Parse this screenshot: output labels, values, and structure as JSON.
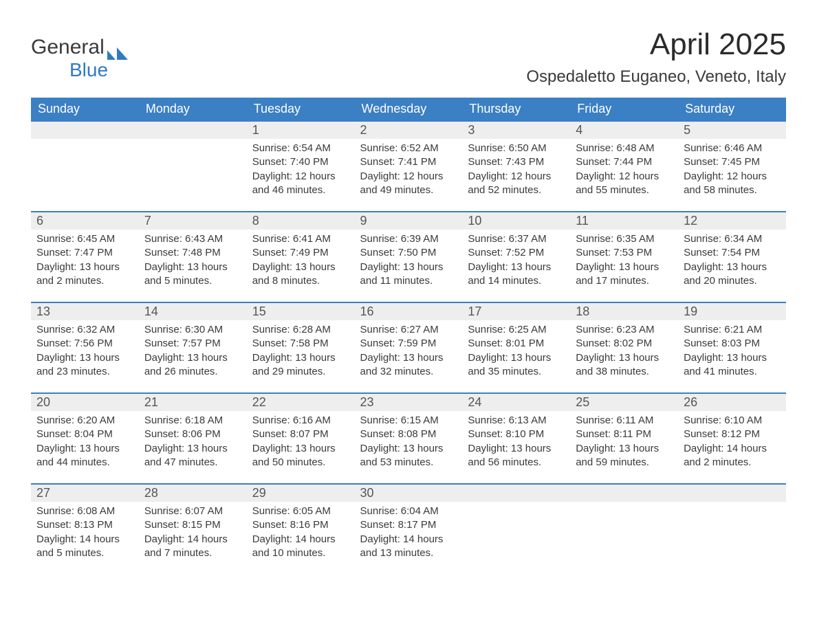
{
  "brand": {
    "name_part1": "General",
    "name_part2": "Blue"
  },
  "title": "April 2025",
  "location": "Ospedaletto Euganeo, Veneto, Italy",
  "colors": {
    "header_bg": "#3b7fc4",
    "header_text": "#ffffff",
    "daybar_bg": "#eeeeee",
    "daybar_text": "#555555",
    "body_text": "#3a3a3a",
    "row_border": "#3b7fc4",
    "logo_accent": "#2f7bc2"
  },
  "typography": {
    "title_fontsize": 44,
    "location_fontsize": 24,
    "header_fontsize": 18,
    "daynum_fontsize": 18,
    "cell_fontsize": 15
  },
  "columns": [
    "Sunday",
    "Monday",
    "Tuesday",
    "Wednesday",
    "Thursday",
    "Friday",
    "Saturday"
  ],
  "weeks": [
    [
      {
        "day": "",
        "sunrise": "",
        "sunset": "",
        "daylight1": "",
        "daylight2": "",
        "empty": true
      },
      {
        "day": "",
        "sunrise": "",
        "sunset": "",
        "daylight1": "",
        "daylight2": "",
        "empty": true
      },
      {
        "day": "1",
        "sunrise": "Sunrise: 6:54 AM",
        "sunset": "Sunset: 7:40 PM",
        "daylight1": "Daylight: 12 hours",
        "daylight2": "and 46 minutes."
      },
      {
        "day": "2",
        "sunrise": "Sunrise: 6:52 AM",
        "sunset": "Sunset: 7:41 PM",
        "daylight1": "Daylight: 12 hours",
        "daylight2": "and 49 minutes."
      },
      {
        "day": "3",
        "sunrise": "Sunrise: 6:50 AM",
        "sunset": "Sunset: 7:43 PM",
        "daylight1": "Daylight: 12 hours",
        "daylight2": "and 52 minutes."
      },
      {
        "day": "4",
        "sunrise": "Sunrise: 6:48 AM",
        "sunset": "Sunset: 7:44 PM",
        "daylight1": "Daylight: 12 hours",
        "daylight2": "and 55 minutes."
      },
      {
        "day": "5",
        "sunrise": "Sunrise: 6:46 AM",
        "sunset": "Sunset: 7:45 PM",
        "daylight1": "Daylight: 12 hours",
        "daylight2": "and 58 minutes."
      }
    ],
    [
      {
        "day": "6",
        "sunrise": "Sunrise: 6:45 AM",
        "sunset": "Sunset: 7:47 PM",
        "daylight1": "Daylight: 13 hours",
        "daylight2": "and 2 minutes."
      },
      {
        "day": "7",
        "sunrise": "Sunrise: 6:43 AM",
        "sunset": "Sunset: 7:48 PM",
        "daylight1": "Daylight: 13 hours",
        "daylight2": "and 5 minutes."
      },
      {
        "day": "8",
        "sunrise": "Sunrise: 6:41 AM",
        "sunset": "Sunset: 7:49 PM",
        "daylight1": "Daylight: 13 hours",
        "daylight2": "and 8 minutes."
      },
      {
        "day": "9",
        "sunrise": "Sunrise: 6:39 AM",
        "sunset": "Sunset: 7:50 PM",
        "daylight1": "Daylight: 13 hours",
        "daylight2": "and 11 minutes."
      },
      {
        "day": "10",
        "sunrise": "Sunrise: 6:37 AM",
        "sunset": "Sunset: 7:52 PM",
        "daylight1": "Daylight: 13 hours",
        "daylight2": "and 14 minutes."
      },
      {
        "day": "11",
        "sunrise": "Sunrise: 6:35 AM",
        "sunset": "Sunset: 7:53 PM",
        "daylight1": "Daylight: 13 hours",
        "daylight2": "and 17 minutes."
      },
      {
        "day": "12",
        "sunrise": "Sunrise: 6:34 AM",
        "sunset": "Sunset: 7:54 PM",
        "daylight1": "Daylight: 13 hours",
        "daylight2": "and 20 minutes."
      }
    ],
    [
      {
        "day": "13",
        "sunrise": "Sunrise: 6:32 AM",
        "sunset": "Sunset: 7:56 PM",
        "daylight1": "Daylight: 13 hours",
        "daylight2": "and 23 minutes."
      },
      {
        "day": "14",
        "sunrise": "Sunrise: 6:30 AM",
        "sunset": "Sunset: 7:57 PM",
        "daylight1": "Daylight: 13 hours",
        "daylight2": "and 26 minutes."
      },
      {
        "day": "15",
        "sunrise": "Sunrise: 6:28 AM",
        "sunset": "Sunset: 7:58 PM",
        "daylight1": "Daylight: 13 hours",
        "daylight2": "and 29 minutes."
      },
      {
        "day": "16",
        "sunrise": "Sunrise: 6:27 AM",
        "sunset": "Sunset: 7:59 PM",
        "daylight1": "Daylight: 13 hours",
        "daylight2": "and 32 minutes."
      },
      {
        "day": "17",
        "sunrise": "Sunrise: 6:25 AM",
        "sunset": "Sunset: 8:01 PM",
        "daylight1": "Daylight: 13 hours",
        "daylight2": "and 35 minutes."
      },
      {
        "day": "18",
        "sunrise": "Sunrise: 6:23 AM",
        "sunset": "Sunset: 8:02 PM",
        "daylight1": "Daylight: 13 hours",
        "daylight2": "and 38 minutes."
      },
      {
        "day": "19",
        "sunrise": "Sunrise: 6:21 AM",
        "sunset": "Sunset: 8:03 PM",
        "daylight1": "Daylight: 13 hours",
        "daylight2": "and 41 minutes."
      }
    ],
    [
      {
        "day": "20",
        "sunrise": "Sunrise: 6:20 AM",
        "sunset": "Sunset: 8:04 PM",
        "daylight1": "Daylight: 13 hours",
        "daylight2": "and 44 minutes."
      },
      {
        "day": "21",
        "sunrise": "Sunrise: 6:18 AM",
        "sunset": "Sunset: 8:06 PM",
        "daylight1": "Daylight: 13 hours",
        "daylight2": "and 47 minutes."
      },
      {
        "day": "22",
        "sunrise": "Sunrise: 6:16 AM",
        "sunset": "Sunset: 8:07 PM",
        "daylight1": "Daylight: 13 hours",
        "daylight2": "and 50 minutes."
      },
      {
        "day": "23",
        "sunrise": "Sunrise: 6:15 AM",
        "sunset": "Sunset: 8:08 PM",
        "daylight1": "Daylight: 13 hours",
        "daylight2": "and 53 minutes."
      },
      {
        "day": "24",
        "sunrise": "Sunrise: 6:13 AM",
        "sunset": "Sunset: 8:10 PM",
        "daylight1": "Daylight: 13 hours",
        "daylight2": "and 56 minutes."
      },
      {
        "day": "25",
        "sunrise": "Sunrise: 6:11 AM",
        "sunset": "Sunset: 8:11 PM",
        "daylight1": "Daylight: 13 hours",
        "daylight2": "and 59 minutes."
      },
      {
        "day": "26",
        "sunrise": "Sunrise: 6:10 AM",
        "sunset": "Sunset: 8:12 PM",
        "daylight1": "Daylight: 14 hours",
        "daylight2": "and 2 minutes."
      }
    ],
    [
      {
        "day": "27",
        "sunrise": "Sunrise: 6:08 AM",
        "sunset": "Sunset: 8:13 PM",
        "daylight1": "Daylight: 14 hours",
        "daylight2": "and 5 minutes."
      },
      {
        "day": "28",
        "sunrise": "Sunrise: 6:07 AM",
        "sunset": "Sunset: 8:15 PM",
        "daylight1": "Daylight: 14 hours",
        "daylight2": "and 7 minutes."
      },
      {
        "day": "29",
        "sunrise": "Sunrise: 6:05 AM",
        "sunset": "Sunset: 8:16 PM",
        "daylight1": "Daylight: 14 hours",
        "daylight2": "and 10 minutes."
      },
      {
        "day": "30",
        "sunrise": "Sunrise: 6:04 AM",
        "sunset": "Sunset: 8:17 PM",
        "daylight1": "Daylight: 14 hours",
        "daylight2": "and 13 minutes."
      },
      {
        "day": "",
        "sunrise": "",
        "sunset": "",
        "daylight1": "",
        "daylight2": "",
        "empty": true
      },
      {
        "day": "",
        "sunrise": "",
        "sunset": "",
        "daylight1": "",
        "daylight2": "",
        "empty": true
      },
      {
        "day": "",
        "sunrise": "",
        "sunset": "",
        "daylight1": "",
        "daylight2": "",
        "empty": true
      }
    ]
  ]
}
